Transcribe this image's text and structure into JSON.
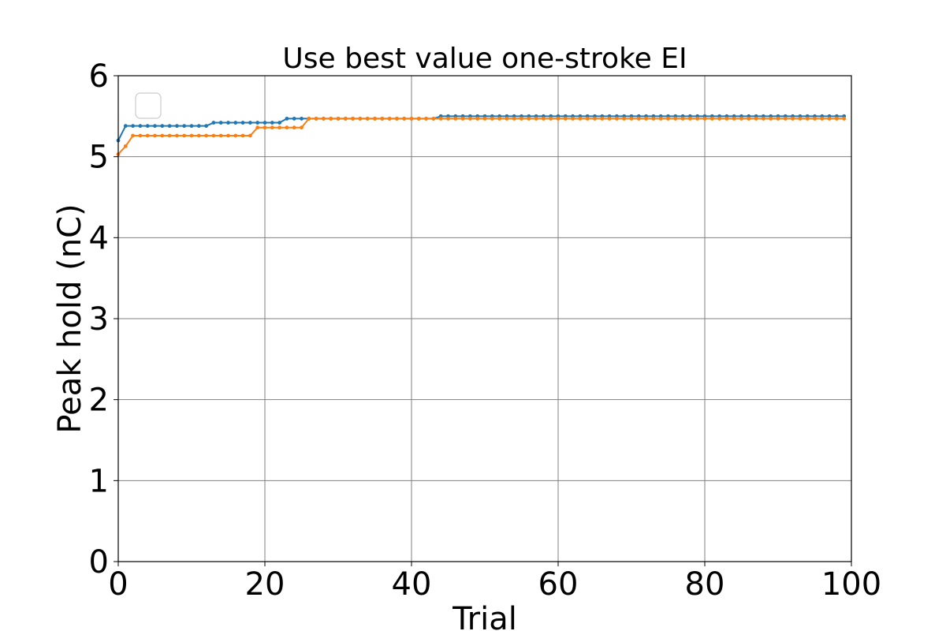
{
  "chart_data": {
    "type": "line",
    "title": "Use best value one-stroke EI",
    "xlabel": "Trial",
    "ylabel": "Peak hold (nC)",
    "xlim": [
      0,
      100
    ],
    "ylim": [
      0,
      6
    ],
    "xticks": [
      0,
      20,
      40,
      60,
      80,
      100
    ],
    "yticks": [
      0,
      1,
      2,
      3,
      4,
      5,
      6
    ],
    "xtick_labels": [
      "0",
      "20",
      "40",
      "60",
      "80",
      "100"
    ],
    "ytick_labels": [
      "0",
      "1",
      "2",
      "3",
      "4",
      "5",
      "6"
    ],
    "grid": true,
    "legend": {
      "placement": "upper-left",
      "entries": []
    },
    "series": [
      {
        "color": "#1f77b4",
        "marker": "dot",
        "steps": [
          {
            "from_trial": 0,
            "value": 5.2
          },
          {
            "from_trial": 1,
            "value": 5.38
          },
          {
            "from_trial": 13,
            "value": 5.42
          },
          {
            "from_trial": 23,
            "value": 5.47
          },
          {
            "from_trial": 44,
            "value": 5.5
          }
        ],
        "last_trial": 99
      },
      {
        "color": "#ff7f0e",
        "marker": "dot",
        "steps": [
          {
            "from_trial": 0,
            "value": 5.03
          },
          {
            "from_trial": 1,
            "value": 5.13
          },
          {
            "from_trial": 2,
            "value": 5.26
          },
          {
            "from_trial": 19,
            "value": 5.36
          },
          {
            "from_trial": 26,
            "value": 5.47
          }
        ],
        "last_trial": 99
      }
    ]
  }
}
